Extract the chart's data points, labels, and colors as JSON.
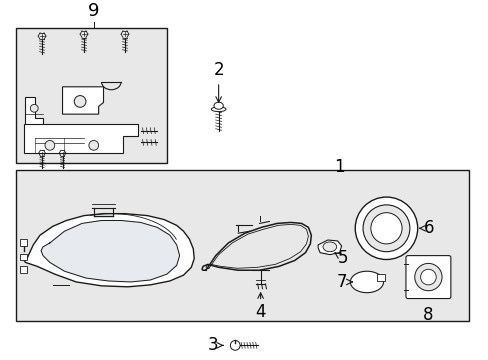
{
  "bg": "#ffffff",
  "inset_bg": "#e8e8e8",
  "main_bg": "#e8e8e8",
  "lc": "#1a1a1a",
  "tc": "#000000",
  "fig_w": 4.89,
  "fig_h": 3.6,
  "dpi": 100,
  "fs": 11,
  "fs_small": 9
}
